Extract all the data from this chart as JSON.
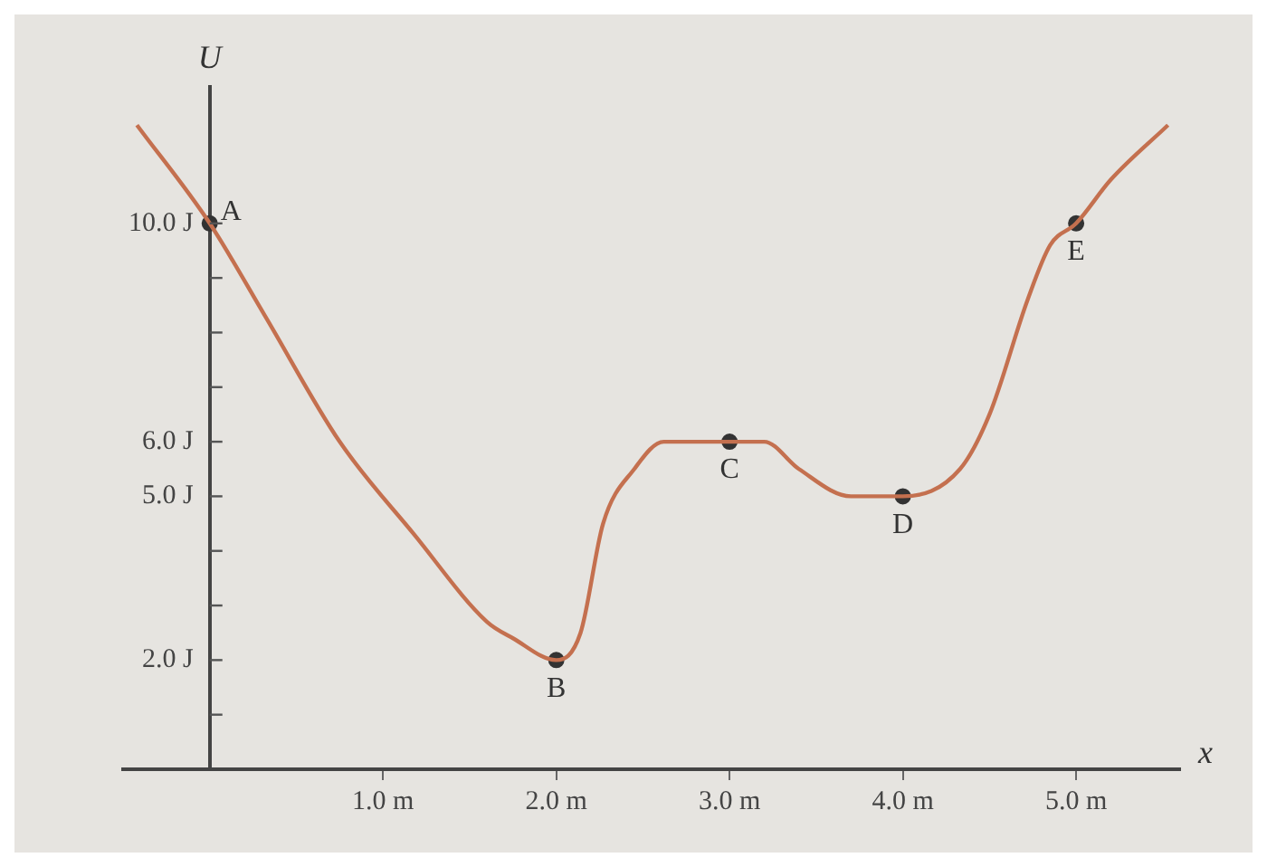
{
  "chart_data": {
    "type": "line",
    "xlabel": "x",
    "ylabel": "U",
    "x": [
      -0.42,
      0,
      0.32,
      0.75,
      1.18,
      1.6,
      1.75,
      2.0,
      2.14,
      2.27,
      2.45,
      2.62,
      3.0,
      3.2,
      3.4,
      3.7,
      4.0,
      4.33,
      4.5,
      4.72,
      4.85,
      5.0,
      5.2,
      5.53
    ],
    "series": [
      {
        "color": "#c4704f",
        "values": [
          11.8,
          10.0,
          8.3,
          6.0,
          4.3,
          2.7,
          2.4,
          2.0,
          2.5,
          4.5,
          5.5,
          6.0,
          6.0,
          6.0,
          5.5,
          5.0,
          5.0,
          5.5,
          6.5,
          8.6,
          9.6,
          10.0,
          10.8,
          11.8
        ],
        "marker": "none"
      },
      {
        "type": "scatter",
        "color": "#333333",
        "x": [
          0,
          2.0,
          3.0,
          4.0,
          5.0
        ],
        "values": [
          10.0,
          2.0,
          6.0,
          5.0,
          10.0
        ],
        "marker": "circle"
      }
    ],
    "annotations": [
      {
        "text": "A",
        "x": 0,
        "y": 10.0
      },
      {
        "text": "B",
        "x": 2.0,
        "y": 2.0
      },
      {
        "text": "C",
        "x": 3.0,
        "y": 6.0
      },
      {
        "text": "D",
        "x": 4.0,
        "y": 5.0
      },
      {
        "text": "E",
        "x": 5.0,
        "y": 10.0
      }
    ],
    "xlim": [
      -0.5,
      5.6
    ],
    "ylim": [
      0,
      12.5
    ],
    "xticks": [
      {
        "value": 1,
        "label": "1.0 m"
      },
      {
        "value": 2,
        "label": "2.0 m"
      },
      {
        "value": 3,
        "label": "3.0 m"
      },
      {
        "value": 4,
        "label": "4.0 m"
      },
      {
        "value": 5,
        "label": "5.0 m"
      }
    ],
    "yticks": [
      {
        "value": 1,
        "label": null
      },
      {
        "value": 2,
        "label": "2.0 J"
      },
      {
        "value": 3,
        "label": null
      },
      {
        "value": 4,
        "label": null
      },
      {
        "value": 5,
        "label": "5.0 J"
      },
      {
        "value": 6,
        "label": "6.0 J"
      },
      {
        "value": 7,
        "label": null
      },
      {
        "value": 8,
        "label": null
      },
      {
        "value": 9,
        "label": null
      },
      {
        "value": 10,
        "label": "10.0 J"
      }
    ],
    "grid": false,
    "legend": false
  }
}
